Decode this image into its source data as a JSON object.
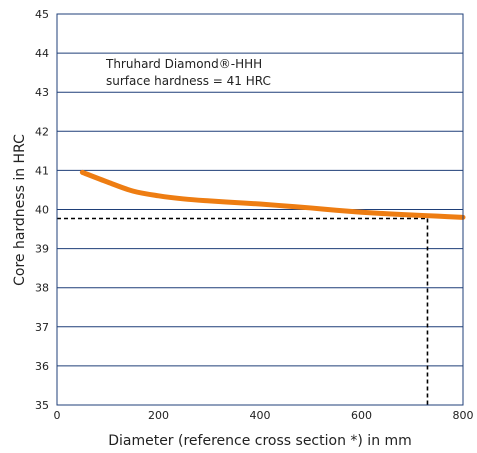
{
  "chart_data": {
    "type": "line",
    "title": "",
    "xlabel": "Diameter (reference cross section *) in mm",
    "ylabel": "Core hardness in HRC",
    "xlim": [
      0,
      800
    ],
    "ylim": [
      35,
      45
    ],
    "xticks": [
      0,
      200,
      400,
      600,
      800
    ],
    "yticks": [
      35,
      36,
      37,
      38,
      39,
      40,
      41,
      42,
      43,
      44,
      45
    ],
    "grid": "horizontal",
    "annotation": {
      "lines": [
        "Thruhard Diamond®-HHH",
        "surface hardness = 41 HRC"
      ]
    },
    "series": [
      {
        "color": "#ee7d12",
        "x": [
          50,
          100,
          150,
          200,
          250,
          300,
          350,
          400,
          450,
          500,
          550,
          600,
          650,
          700,
          750,
          800
        ],
        "y": [
          40.95,
          40.7,
          40.47,
          40.35,
          40.27,
          40.22,
          40.18,
          40.14,
          40.09,
          40.04,
          39.98,
          39.93,
          39.89,
          39.86,
          39.83,
          39.8
        ]
      }
    ],
    "reference": {
      "x": 730,
      "y": 39.77,
      "style": "dashed"
    },
    "colors": {
      "frame": "#1f3f78",
      "grid": "#1f3f78",
      "reference": "#000000"
    }
  }
}
